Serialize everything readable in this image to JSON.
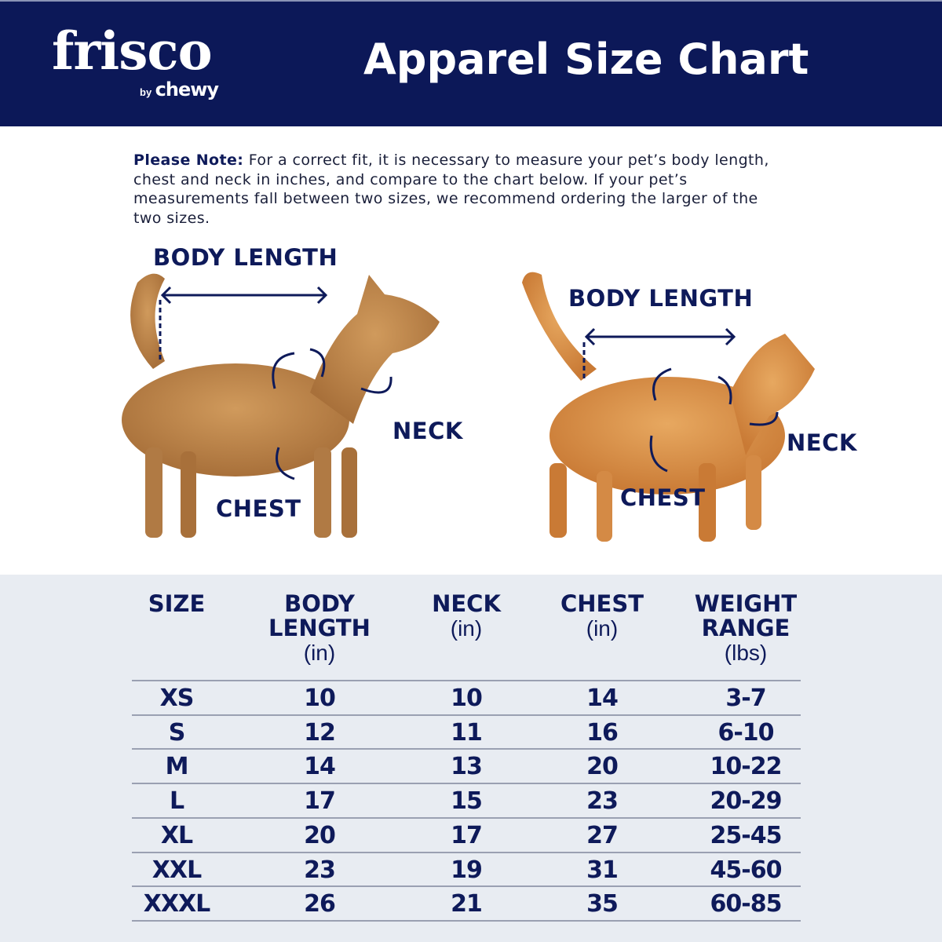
{
  "header": {
    "logo": "frisco",
    "logo_sub_by": "by",
    "logo_sub_brand": "chewy",
    "title": "Apparel Size Chart"
  },
  "note": {
    "label": "Please Note:",
    "text": " For a correct fit, it is necessary to measure your pet’s body length, chest and neck in inches, and compare to the chart below. If your pet’s measurements fall between two sizes, we recommend ordering the larger of the two sizes."
  },
  "diagram": {
    "dog": {
      "body_length": "BODY LENGTH",
      "neck": "NECK",
      "chest": "CHEST"
    },
    "cat": {
      "body_length": "BODY LENGTH",
      "neck": "NECK",
      "chest": "CHEST"
    }
  },
  "colors": {
    "navy": "#0c1858",
    "table_bg": "#e8ecf2",
    "dog": "#c08a4e",
    "cat": "#d9914a"
  },
  "table": {
    "headers": [
      {
        "title": "SIZE",
        "title2": "",
        "unit": ""
      },
      {
        "title": "BODY",
        "title2": "LENGTH",
        "unit": "(in)"
      },
      {
        "title": "NECK",
        "title2": "",
        "unit": "(in)"
      },
      {
        "title": "CHEST",
        "title2": "",
        "unit": "(in)"
      },
      {
        "title": "WEIGHT",
        "title2": "RANGE",
        "unit": "(lbs)"
      }
    ],
    "rows": [
      [
        "XS",
        "10",
        "10",
        "14",
        "3-7"
      ],
      [
        "S",
        "12",
        "11",
        "16",
        "6-10"
      ],
      [
        "M",
        "14",
        "13",
        "20",
        "10-22"
      ],
      [
        "L",
        "17",
        "15",
        "23",
        "20-29"
      ],
      [
        "XL",
        "20",
        "17",
        "27",
        "25-45"
      ],
      [
        "XXL",
        "23",
        "19",
        "31",
        "45-60"
      ],
      [
        "XXXL",
        "26",
        "21",
        "35",
        "60-85"
      ]
    ]
  }
}
